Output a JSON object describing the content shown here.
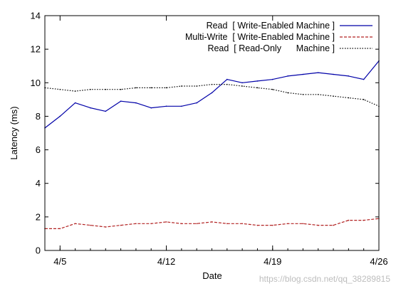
{
  "chart_data": {
    "type": "line",
    "title": "",
    "xlabel": "Date",
    "ylabel": "Latency (ms)",
    "xlim": [
      "2013-04-04",
      "2013-04-26"
    ],
    "ylim": [
      0,
      14
    ],
    "x_ticks": [
      {
        "date": "2013-04-05",
        "label": "4/5"
      },
      {
        "date": "2013-04-12",
        "label": "4/12"
      },
      {
        "date": "2013-04-19",
        "label": "4/19"
      },
      {
        "date": "2013-04-26",
        "label": "4/26"
      }
    ],
    "y_ticks": [
      0,
      2,
      4,
      6,
      8,
      10,
      12,
      14
    ],
    "grid": false,
    "legend_position": "top-right",
    "series": [
      {
        "name": "Read  [ Write-Enabled Machine ]",
        "color": "#0000a8",
        "style": "solid",
        "dates": [
          "2013-04-04",
          "2013-04-05",
          "2013-04-06",
          "2013-04-07",
          "2013-04-08",
          "2013-04-09",
          "2013-04-10",
          "2013-04-11",
          "2013-04-12",
          "2013-04-13",
          "2013-04-14",
          "2013-04-15",
          "2013-04-16",
          "2013-04-17",
          "2013-04-18",
          "2013-04-19",
          "2013-04-20",
          "2013-04-21",
          "2013-04-22",
          "2013-04-23",
          "2013-04-24",
          "2013-04-25",
          "2013-04-26"
        ],
        "values": [
          7.3,
          8.0,
          8.8,
          8.5,
          8.3,
          8.9,
          8.8,
          8.5,
          8.6,
          8.6,
          8.8,
          9.4,
          10.2,
          10.0,
          10.1,
          10.2,
          10.4,
          10.5,
          10.6,
          10.5,
          10.4,
          10.2,
          11.3
        ]
      },
      {
        "name": "Multi-Write  [ Write-Enabled Machine ]",
        "color": "#b22222",
        "style": "dashed",
        "dates": [
          "2013-04-04",
          "2013-04-05",
          "2013-04-06",
          "2013-04-07",
          "2013-04-08",
          "2013-04-09",
          "2013-04-10",
          "2013-04-11",
          "2013-04-12",
          "2013-04-13",
          "2013-04-14",
          "2013-04-15",
          "2013-04-16",
          "2013-04-17",
          "2013-04-18",
          "2013-04-19",
          "2013-04-20",
          "2013-04-21",
          "2013-04-22",
          "2013-04-23",
          "2013-04-24",
          "2013-04-25",
          "2013-04-26"
        ],
        "values": [
          1.3,
          1.3,
          1.6,
          1.5,
          1.4,
          1.5,
          1.6,
          1.6,
          1.7,
          1.6,
          1.6,
          1.7,
          1.6,
          1.6,
          1.5,
          1.5,
          1.6,
          1.6,
          1.5,
          1.5,
          1.8,
          1.8,
          1.9
        ]
      },
      {
        "name": "Read  [ Read-Only      Machine ]",
        "color": "#000000",
        "style": "dotted",
        "dates": [
          "2013-04-04",
          "2013-04-05",
          "2013-04-06",
          "2013-04-07",
          "2013-04-08",
          "2013-04-09",
          "2013-04-10",
          "2013-04-11",
          "2013-04-12",
          "2013-04-13",
          "2013-04-14",
          "2013-04-15",
          "2013-04-16",
          "2013-04-17",
          "2013-04-18",
          "2013-04-19",
          "2013-04-20",
          "2013-04-21",
          "2013-04-22",
          "2013-04-23",
          "2013-04-24",
          "2013-04-25",
          "2013-04-26"
        ],
        "values": [
          9.7,
          9.6,
          9.5,
          9.6,
          9.6,
          9.6,
          9.7,
          9.7,
          9.7,
          9.8,
          9.8,
          9.9,
          9.9,
          9.8,
          9.7,
          9.6,
          9.4,
          9.3,
          9.3,
          9.2,
          9.1,
          9.0,
          8.6
        ]
      }
    ]
  },
  "watermark": "https://blog.csdn.net/qq_38289815"
}
